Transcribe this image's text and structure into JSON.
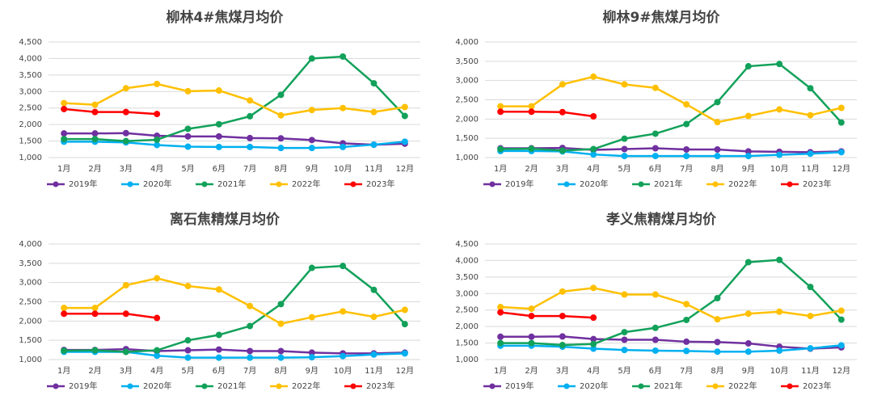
{
  "chart_data": [
    {
      "type": "line",
      "title": "柳林4#焦煤月均价",
      "categories": [
        "1月",
        "2月",
        "3月",
        "4月",
        "5月",
        "6月",
        "7月",
        "8月",
        "9月",
        "10月",
        "11月",
        "12月"
      ],
      "ylim": [
        1000,
        4500
      ],
      "yticks": [
        {
          "value": 1000,
          "label": "1,000"
        },
        {
          "value": 1500,
          "label": "1,500"
        },
        {
          "value": 2000,
          "label": "2,000"
        },
        {
          "value": 2500,
          "label": "2,500"
        },
        {
          "value": 3000,
          "label": "3,000"
        },
        {
          "value": 3500,
          "label": "3,500"
        },
        {
          "value": 4000,
          "label": "4,000"
        },
        {
          "value": 4500,
          "label": "4,500"
        }
      ],
      "grid": true,
      "series": [
        {
          "name": "2019年",
          "color": "#7030a0",
          "values": [
            1730,
            1730,
            1740,
            1660,
            1640,
            1640,
            1590,
            1580,
            1530,
            1430,
            1390,
            1420
          ]
        },
        {
          "name": "2020年",
          "color": "#00b0f0",
          "values": [
            1480,
            1480,
            1460,
            1380,
            1330,
            1320,
            1320,
            1290,
            1290,
            1320,
            1390,
            1480
          ]
        },
        {
          "name": "2021年",
          "color": "#12a15a",
          "values": [
            1560,
            1560,
            1500,
            1540,
            1870,
            2010,
            2250,
            2900,
            4000,
            4060,
            3250,
            2260
          ]
        },
        {
          "name": "2022年",
          "color": "#ffc000",
          "values": [
            2650,
            2600,
            3100,
            3230,
            3010,
            3030,
            2730,
            2280,
            2440,
            2500,
            2380,
            2530
          ]
        },
        {
          "name": "2023年",
          "color": "#ff0000",
          "values": [
            2470,
            2380,
            2380,
            2320,
            null,
            null,
            null,
            null,
            null,
            null,
            null,
            null
          ]
        }
      ]
    },
    {
      "type": "line",
      "title": "柳林9#焦煤月均价",
      "categories": [
        "1月",
        "2月",
        "3月",
        "4月",
        "5月",
        "6月",
        "7月",
        "8月",
        "9月",
        "10月",
        "11月",
        "12月"
      ],
      "ylim": [
        1000,
        4000
      ],
      "yticks": [
        {
          "value": 1000,
          "label": "1,000"
        },
        {
          "value": 1500,
          "label": "1,500"
        },
        {
          "value": 2000,
          "label": "2,000"
        },
        {
          "value": 2500,
          "label": "2,500"
        },
        {
          "value": 3000,
          "label": "3,000"
        },
        {
          "value": 3500,
          "label": "3,500"
        },
        {
          "value": 4000,
          "label": "4,000"
        }
      ],
      "grid": true,
      "series": [
        {
          "name": "2019年",
          "color": "#7030a0",
          "values": [
            1240,
            1240,
            1250,
            1200,
            1220,
            1240,
            1210,
            1210,
            1160,
            1150,
            1140,
            1160
          ]
        },
        {
          "name": "2020年",
          "color": "#00b0f0",
          "values": [
            1170,
            1170,
            1160,
            1080,
            1040,
            1040,
            1040,
            1040,
            1040,
            1070,
            1100,
            1140
          ]
        },
        {
          "name": "2021年",
          "color": "#12a15a",
          "values": [
            1220,
            1230,
            1180,
            1220,
            1490,
            1620,
            1870,
            2440,
            3370,
            3430,
            2800,
            1910
          ]
        },
        {
          "name": "2022年",
          "color": "#ffc000",
          "values": [
            2330,
            2330,
            2900,
            3100,
            2900,
            2810,
            2380,
            1920,
            2080,
            2250,
            2100,
            2290
          ]
        },
        {
          "name": "2023年",
          "color": "#ff0000",
          "values": [
            2190,
            2190,
            2180,
            2070,
            null,
            null,
            null,
            null,
            null,
            null,
            null,
            null
          ]
        }
      ]
    },
    {
      "type": "line",
      "title": "离石焦精煤月均价",
      "categories": [
        "1月",
        "2月",
        "3月",
        "4月",
        "5月",
        "6月",
        "7月",
        "8月",
        "9月",
        "10月",
        "11月",
        "12月"
      ],
      "ylim": [
        1000,
        4000
      ],
      "yticks": [
        {
          "value": 1000,
          "label": "1,000"
        },
        {
          "value": 1500,
          "label": "1,500"
        },
        {
          "value": 2000,
          "label": "2,000"
        },
        {
          "value": 2500,
          "label": "2,500"
        },
        {
          "value": 3000,
          "label": "3,000"
        },
        {
          "value": 3500,
          "label": "3,500"
        },
        {
          "value": 4000,
          "label": "4,000"
        }
      ],
      "grid": true,
      "series": [
        {
          "name": "2019年",
          "color": "#7030a0",
          "values": [
            1250,
            1250,
            1270,
            1220,
            1240,
            1260,
            1220,
            1220,
            1180,
            1160,
            1160,
            1180
          ]
        },
        {
          "name": "2020年",
          "color": "#00b0f0",
          "values": [
            1200,
            1200,
            1200,
            1100,
            1050,
            1050,
            1050,
            1050,
            1060,
            1090,
            1130,
            1160
          ]
        },
        {
          "name": "2021年",
          "color": "#12a15a",
          "values": [
            1230,
            1240,
            1200,
            1240,
            1500,
            1640,
            1870,
            2440,
            3380,
            3430,
            2810,
            1920
          ]
        },
        {
          "name": "2022年",
          "color": "#ffc000",
          "values": [
            2340,
            2340,
            2930,
            3110,
            2910,
            2820,
            2390,
            1930,
            2100,
            2250,
            2110,
            2290
          ]
        },
        {
          "name": "2023年",
          "color": "#ff0000",
          "values": [
            2190,
            2190,
            2190,
            2080,
            null,
            null,
            null,
            null,
            null,
            null,
            null,
            null
          ]
        }
      ]
    },
    {
      "type": "line",
      "title": "孝义焦精煤月均价",
      "categories": [
        "1月",
        "2月",
        "3月",
        "4月",
        "5月",
        "6月",
        "7月",
        "8月",
        "9月",
        "10月",
        "11月",
        "12月"
      ],
      "ylim": [
        1000,
        4500
      ],
      "yticks": [
        {
          "value": 1000,
          "label": "1,000"
        },
        {
          "value": 1500,
          "label": "1,500"
        },
        {
          "value": 2000,
          "label": "2,000"
        },
        {
          "value": 2500,
          "label": "2,500"
        },
        {
          "value": 3000,
          "label": "3,000"
        },
        {
          "value": 3500,
          "label": "3,500"
        },
        {
          "value": 4000,
          "label": "4,000"
        },
        {
          "value": 4500,
          "label": "4,500"
        }
      ],
      "grid": true,
      "series": [
        {
          "name": "2019年",
          "color": "#7030a0",
          "values": [
            1690,
            1690,
            1700,
            1620,
            1600,
            1600,
            1540,
            1530,
            1490,
            1390,
            1330,
            1370
          ]
        },
        {
          "name": "2020年",
          "color": "#00b0f0",
          "values": [
            1420,
            1420,
            1390,
            1330,
            1290,
            1270,
            1260,
            1240,
            1240,
            1270,
            1340,
            1430
          ]
        },
        {
          "name": "2021年",
          "color": "#12a15a",
          "values": [
            1500,
            1500,
            1440,
            1470,
            1830,
            1960,
            2200,
            2860,
            3950,
            4020,
            3200,
            2210
          ]
        },
        {
          "name": "2022年",
          "color": "#ffc000",
          "values": [
            2590,
            2540,
            3060,
            3170,
            2970,
            2970,
            2680,
            2220,
            2390,
            2450,
            2320,
            2480
          ]
        },
        {
          "name": "2023年",
          "color": "#ff0000",
          "values": [
            2430,
            2320,
            2320,
            2270,
            null,
            null,
            null,
            null,
            null,
            null,
            null,
            null
          ]
        }
      ]
    }
  ]
}
